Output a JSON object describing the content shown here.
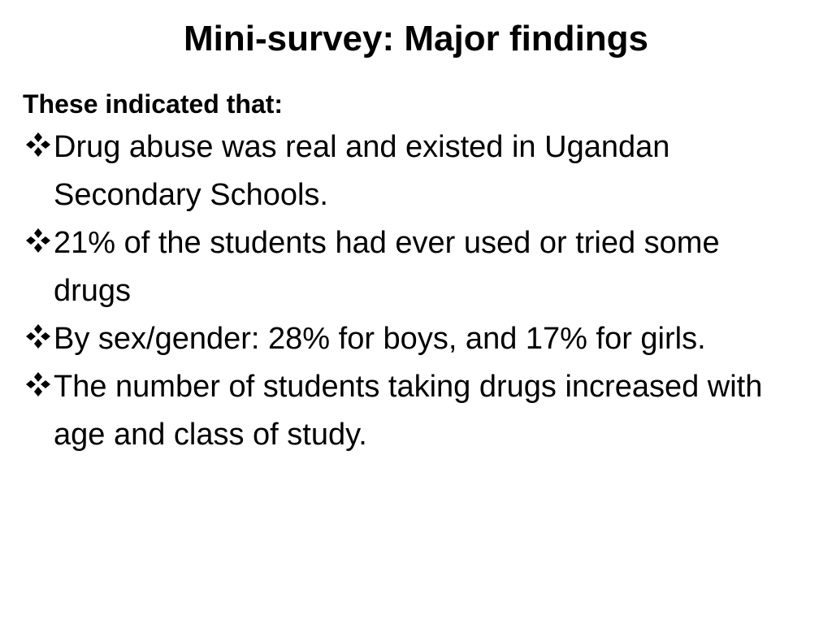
{
  "slide": {
    "title": "Mini-survey: Major findings",
    "intro": "These indicated that:",
    "bullet_icon": "four-diamond-bullet-icon",
    "bullets": [
      {
        "text": "Drug abuse was real and existed in Ugandan Secondary Schools."
      },
      {
        "text": "21% of the students had ever used or tried some drugs"
      },
      {
        "text": "By sex/gender: 28% for boys, and 17% for girls."
      },
      {
        "text": "The number of students taking drugs increased with age and class of study."
      }
    ]
  }
}
